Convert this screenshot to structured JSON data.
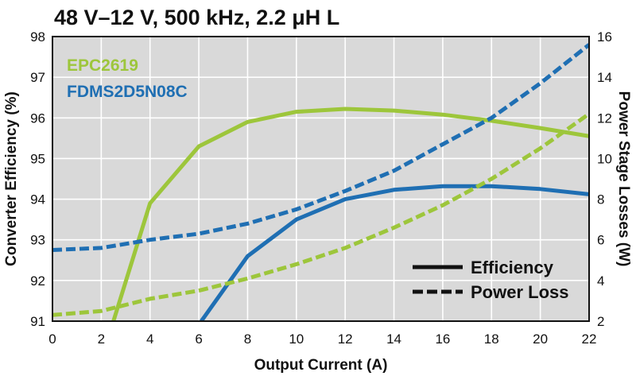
{
  "chart_data": {
    "type": "line",
    "title": "48 V–12 V, 500 kHz, 2.2 μH L",
    "xlabel": "Output Current (A)",
    "ylabel_left": "Converter Efficiency (%)",
    "ylabel_right": "Power Stage Losses (W)",
    "xlim": [
      0,
      22
    ],
    "ylim_left": [
      91,
      98
    ],
    "ylim_right": [
      2,
      16
    ],
    "x_ticks": [
      0,
      2,
      4,
      6,
      8,
      10,
      12,
      14,
      16,
      18,
      20,
      22
    ],
    "y_left_ticks": [
      91,
      92,
      93,
      94,
      95,
      96,
      97,
      98
    ],
    "y_right_ticks": [
      2,
      4,
      6,
      8,
      10,
      12,
      14,
      16
    ],
    "grid": true,
    "plot_background": "#d9d9d9",
    "device_legend": [
      {
        "label": "EPC2619",
        "color": "#9dc63b"
      },
      {
        "label": "FDMS2D5N08C",
        "color": "#1f6fb3"
      }
    ],
    "style_legend": [
      {
        "label": "Efficiency",
        "dash": "solid"
      },
      {
        "label": "Power Loss",
        "dash": "dashed"
      }
    ],
    "series": [
      {
        "name": "EPC2619",
        "metric": "Efficiency",
        "axis": "left",
        "color": "#9dc63b",
        "dash": "solid",
        "x": [
          2.5,
          4,
          6,
          8,
          10,
          12,
          14,
          16,
          18,
          20,
          22
        ],
        "y": [
          91.0,
          93.9,
          95.3,
          95.9,
          96.15,
          96.22,
          96.18,
          96.08,
          95.93,
          95.75,
          95.55
        ]
      },
      {
        "name": "FDMS2D5N08C",
        "metric": "Efficiency",
        "axis": "left",
        "color": "#1f6fb3",
        "dash": "solid",
        "x": [
          6.1,
          8,
          10,
          12,
          14,
          16,
          18,
          20,
          22
        ],
        "y": [
          91.0,
          92.6,
          93.5,
          94.0,
          94.23,
          94.32,
          94.32,
          94.25,
          94.12
        ]
      },
      {
        "name": "EPC2619",
        "metric": "Power Loss",
        "axis": "right",
        "color": "#9dc63b",
        "dash": "dashed",
        "x": [
          0,
          2,
          4,
          6,
          8,
          10,
          12,
          14,
          16,
          18,
          20,
          22
        ],
        "y": [
          2.3,
          2.5,
          3.1,
          3.5,
          4.1,
          4.8,
          5.6,
          6.6,
          7.7,
          9.0,
          10.5,
          12.2
        ]
      },
      {
        "name": "FDMS2D5N08C",
        "metric": "Power Loss",
        "axis": "right",
        "color": "#1f6fb3",
        "dash": "dashed",
        "x": [
          0,
          2,
          4,
          6,
          8,
          10,
          12,
          14,
          16,
          18,
          20,
          22
        ],
        "y": [
          5.5,
          5.6,
          6.0,
          6.3,
          6.8,
          7.5,
          8.4,
          9.4,
          10.7,
          12.0,
          13.7,
          15.6
        ]
      }
    ]
  }
}
